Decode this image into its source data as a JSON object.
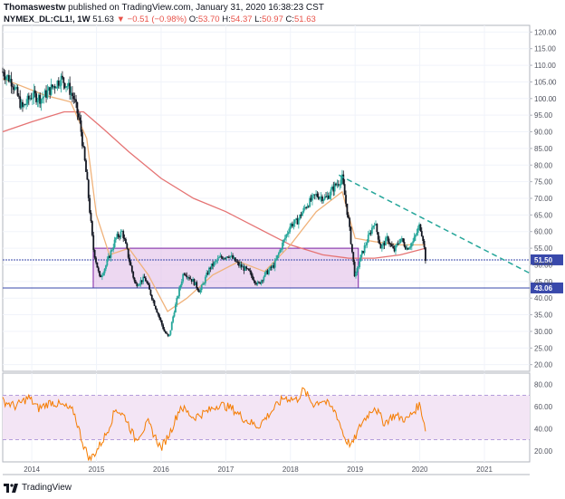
{
  "header": {
    "user": "Thomaswestw",
    "published_text": "published on TradingView.com, January 31, 2020 16:38:23 CST",
    "symbol": "NYMEX_DL:CL1!, 1W",
    "last": "51.63",
    "change": "▼ −0.51 (−0.98%)",
    "o_label": "O:",
    "o_value": "53.70",
    "h_label": "H:",
    "h_value": "54.37",
    "l_label": "L:",
    "l_value": "50.97",
    "c_label": "C:",
    "c_value": "51.63"
  },
  "footer": {
    "logo_icon": "tradingview-logo-icon",
    "logo_text": "TradingView"
  },
  "colors": {
    "up": "#26a69a",
    "down": "#131722",
    "sma_fast": "#f0b27a",
    "sma_slow": "#e57373",
    "box_fill": "#e1bee7",
    "box_stroke": "#7b1fa2",
    "trend": "#26a69a",
    "rsi": "#f57c00",
    "rsi_band": "#f3e5f5",
    "tag_bg": "#3949ab"
  },
  "chart_data": [
    {
      "type": "candlestick",
      "title": "",
      "xlabel": "",
      "ylabel": "",
      "x_ticks": [
        "2014",
        "2015",
        "2016",
        "2017",
        "2018",
        "2019",
        "2020",
        "2021"
      ],
      "y_ticks": [
        120.0,
        115.0,
        110.0,
        105.0,
        100.0,
        95.0,
        90.0,
        85.0,
        80.0,
        75.0,
        70.0,
        65.0,
        60.0,
        55.0,
        50.0,
        45.0,
        40.0,
        35.0,
        30.0,
        25.0,
        20.0
      ],
      "y_tick_labels": [
        "120.00",
        "115.00",
        "110.00",
        "105.00",
        "100.00",
        "95.00",
        "90.00",
        "85.00",
        "80.00",
        "75.00",
        "70.00",
        "65.00",
        "60.00",
        "55.00",
        "50.00",
        "45.00",
        "40.00",
        "35.00",
        "30.00",
        "25.00",
        "20.00"
      ],
      "ylim": [
        18,
        122
      ],
      "xlim": [
        2013.55,
        2021.7
      ],
      "price_path": [
        [
          2013.55,
          108
        ],
        [
          2013.7,
          105
        ],
        [
          2013.85,
          97
        ],
        [
          2014.0,
          101
        ],
        [
          2014.15,
          100
        ],
        [
          2014.3,
          103
        ],
        [
          2014.45,
          106
        ],
        [
          2014.55,
          104
        ],
        [
          2014.65,
          100
        ],
        [
          2014.75,
          92
        ],
        [
          2014.85,
          76
        ],
        [
          2014.95,
          55
        ],
        [
          2015.05,
          46
        ],
        [
          2015.15,
          50
        ],
        [
          2015.3,
          58
        ],
        [
          2015.4,
          60
        ],
        [
          2015.5,
          52
        ],
        [
          2015.6,
          44
        ],
        [
          2015.75,
          46
        ],
        [
          2015.9,
          38
        ],
        [
          2016.05,
          30
        ],
        [
          2016.12,
          28
        ],
        [
          2016.2,
          36
        ],
        [
          2016.35,
          48
        ],
        [
          2016.5,
          45
        ],
        [
          2016.6,
          42
        ],
        [
          2016.75,
          49
        ],
        [
          2016.9,
          52
        ],
        [
          2017.05,
          53
        ],
        [
          2017.2,
          50
        ],
        [
          2017.35,
          48
        ],
        [
          2017.5,
          44
        ],
        [
          2017.6,
          47
        ],
        [
          2017.75,
          50
        ],
        [
          2017.85,
          55
        ],
        [
          2018.0,
          62
        ],
        [
          2018.1,
          63
        ],
        [
          2018.25,
          68
        ],
        [
          2018.4,
          71
        ],
        [
          2018.55,
          70
        ],
        [
          2018.7,
          74
        ],
        [
          2018.8,
          76
        ],
        [
          2018.9,
          63
        ],
        [
          2019.0,
          46
        ],
        [
          2019.08,
          52
        ],
        [
          2019.2,
          58
        ],
        [
          2019.3,
          63
        ],
        [
          2019.4,
          55
        ],
        [
          2019.5,
          58
        ],
        [
          2019.6,
          54
        ],
        [
          2019.7,
          58
        ],
        [
          2019.8,
          55
        ],
        [
          2019.9,
          57
        ],
        [
          2020.0,
          62
        ],
        [
          2020.05,
          58
        ],
        [
          2020.09,
          51.63
        ]
      ],
      "sma_fast": [
        [
          2013.55,
          106
        ],
        [
          2014.2,
          101
        ],
        [
          2014.6,
          99
        ],
        [
          2014.85,
          88
        ],
        [
          2015.0,
          65
        ],
        [
          2015.2,
          53
        ],
        [
          2015.5,
          55
        ],
        [
          2015.8,
          47
        ],
        [
          2016.1,
          36
        ],
        [
          2016.4,
          40
        ],
        [
          2016.8,
          47
        ],
        [
          2017.2,
          51
        ],
        [
          2017.6,
          48
        ],
        [
          2018.0,
          56
        ],
        [
          2018.4,
          66
        ],
        [
          2018.8,
          72
        ],
        [
          2019.0,
          58
        ],
        [
          2019.3,
          57
        ],
        [
          2019.7,
          56
        ],
        [
          2020.09,
          56
        ]
      ],
      "sma_slow": [
        [
          2013.55,
          90
        ],
        [
          2014.0,
          93
        ],
        [
          2014.5,
          96
        ],
        [
          2014.8,
          96
        ],
        [
          2015.1,
          91
        ],
        [
          2015.5,
          84
        ],
        [
          2016.0,
          76
        ],
        [
          2016.5,
          70
        ],
        [
          2017.0,
          66
        ],
        [
          2017.5,
          61
        ],
        [
          2018.0,
          56
        ],
        [
          2018.5,
          53
        ],
        [
          2018.9,
          52
        ],
        [
          2019.3,
          52
        ],
        [
          2019.7,
          53
        ],
        [
          2020.09,
          55
        ]
      ],
      "support_box": {
        "x0": 2014.95,
        "x1": 2019.05,
        "y0": 43.06,
        "y1": 55.0
      },
      "horizontal_levels": [
        {
          "value": 51.5,
          "label": "51.50"
        },
        {
          "value": 43.06,
          "label": "43.06"
        }
      ],
      "trend_line": {
        "x0": 2018.75,
        "y0": 77.0,
        "x1": 2021.7,
        "y1": 47.5
      }
    },
    {
      "type": "line",
      "title": "",
      "y_ticks": [
        80.0,
        60.0,
        40.0,
        20.0
      ],
      "y_tick_labels": [
        "80.00",
        "60.00",
        "40.00",
        "20.00"
      ],
      "ylim": [
        10,
        90
      ],
      "band": [
        30,
        70
      ],
      "rsi": [
        [
          2013.55,
          65
        ],
        [
          2013.75,
          60
        ],
        [
          2013.95,
          68
        ],
        [
          2014.1,
          58
        ],
        [
          2014.3,
          64
        ],
        [
          2014.5,
          60
        ],
        [
          2014.65,
          55
        ],
        [
          2014.8,
          25
        ],
        [
          2014.9,
          12
        ],
        [
          2015.0,
          20
        ],
        [
          2015.15,
          35
        ],
        [
          2015.3,
          58
        ],
        [
          2015.45,
          50
        ],
        [
          2015.6,
          30
        ],
        [
          2015.8,
          45
        ],
        [
          2016.0,
          22
        ],
        [
          2016.15,
          38
        ],
        [
          2016.3,
          60
        ],
        [
          2016.5,
          50
        ],
        [
          2016.7,
          55
        ],
        [
          2016.9,
          62
        ],
        [
          2017.1,
          58
        ],
        [
          2017.3,
          48
        ],
        [
          2017.5,
          42
        ],
        [
          2017.7,
          55
        ],
        [
          2017.9,
          68
        ],
        [
          2018.1,
          66
        ],
        [
          2018.2,
          75
        ],
        [
          2018.35,
          62
        ],
        [
          2018.5,
          66
        ],
        [
          2018.7,
          55
        ],
        [
          2018.85,
          30
        ],
        [
          2018.95,
          25
        ],
        [
          2019.1,
          45
        ],
        [
          2019.3,
          60
        ],
        [
          2019.45,
          45
        ],
        [
          2019.6,
          52
        ],
        [
          2019.8,
          48
        ],
        [
          2020.0,
          62
        ],
        [
          2020.09,
          40
        ]
      ]
    }
  ]
}
